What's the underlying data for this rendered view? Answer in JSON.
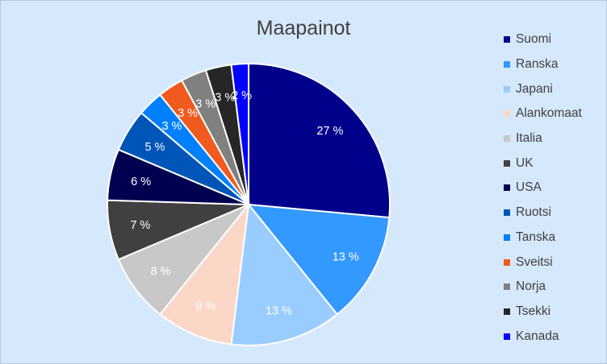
{
  "chart_data": {
    "type": "pie",
    "title": "Maapainot",
    "legend_position": "right",
    "categories": [
      "Suomi",
      "Ranska",
      "Japani",
      "Alankomaat",
      "Italia",
      "UK",
      "USA",
      "Ruotsi",
      "Tanska",
      "Sveitsi",
      "Norja",
      "Tsekki",
      "Kanada"
    ],
    "values": [
      27,
      13,
      13,
      9,
      8,
      7,
      6,
      5,
      3,
      3,
      3,
      3,
      2
    ],
    "labels": [
      "27 %",
      "13 %",
      "13 %",
      "9 %",
      "8 %",
      "7 %",
      "6 %",
      "5 %",
      "3 %",
      "3 %",
      "3 %",
      "3 %",
      "2 %"
    ],
    "colors": [
      "#00008b",
      "#3399ff",
      "#99ccff",
      "#fbd7c8",
      "#c8c8c8",
      "#404040",
      "#000050",
      "#0055b8",
      "#0080ff",
      "#f05a1e",
      "#808080",
      "#262626",
      "#0000ff"
    ],
    "label_colors": [
      "#ffffff",
      "#ffffff",
      "#ffffff",
      "#ffffff",
      "#ffffff",
      "#ffffff",
      "#ffffff",
      "#ffffff",
      "#ffffff",
      "#ffffff",
      "#ffffff",
      "#ffffff",
      "#ffffff"
    ]
  }
}
